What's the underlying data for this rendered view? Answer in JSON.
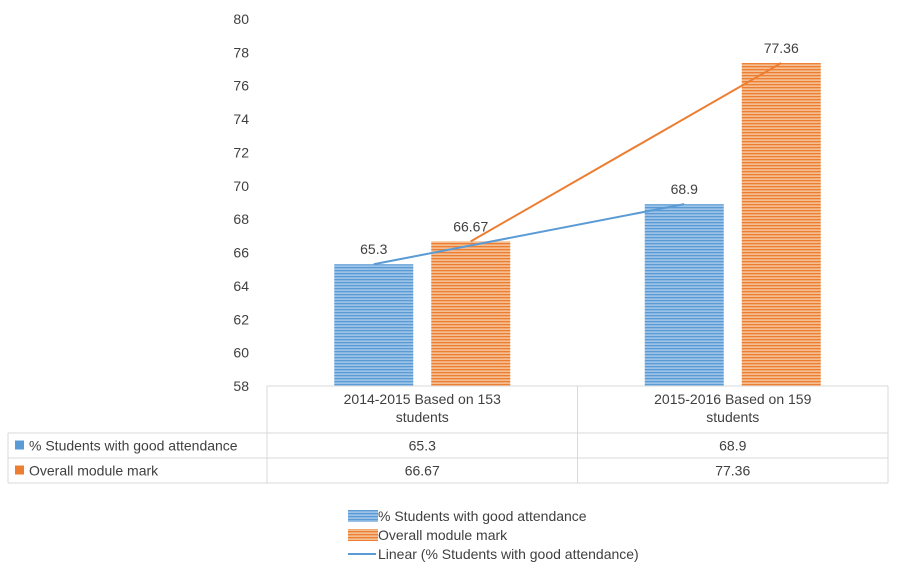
{
  "chart_data": {
    "type": "bar",
    "ylim": [
      58,
      80
    ],
    "yticks": [
      58,
      60,
      62,
      64,
      66,
      68,
      70,
      72,
      74,
      76,
      78,
      80
    ],
    "grid": false,
    "legend_position": "bottom",
    "data_table": true,
    "categories": [
      [
        "2014-2015 Based on 153",
        "students"
      ],
      [
        "2015-2016 Based on 159",
        "students"
      ]
    ],
    "series": [
      {
        "name": "% Students with good attendance",
        "values": [
          65.3,
          68.9
        ],
        "labels": [
          "65.3",
          "68.9"
        ],
        "color": "#6FA6D8"
      },
      {
        "name": "Overall module mark",
        "values": [
          66.67,
          77.36
        ],
        "labels": [
          "66.67",
          "77.36"
        ],
        "color": "#F0A060"
      }
    ],
    "trendlines": [
      {
        "name": "Linear (% Students with good attendance)",
        "series_index": 0,
        "color": "#5B9BD5",
        "show_in_legend": true
      },
      {
        "name": "",
        "series_index": 1,
        "color": "#ED7D31",
        "show_in_legend": false
      }
    ]
  }
}
